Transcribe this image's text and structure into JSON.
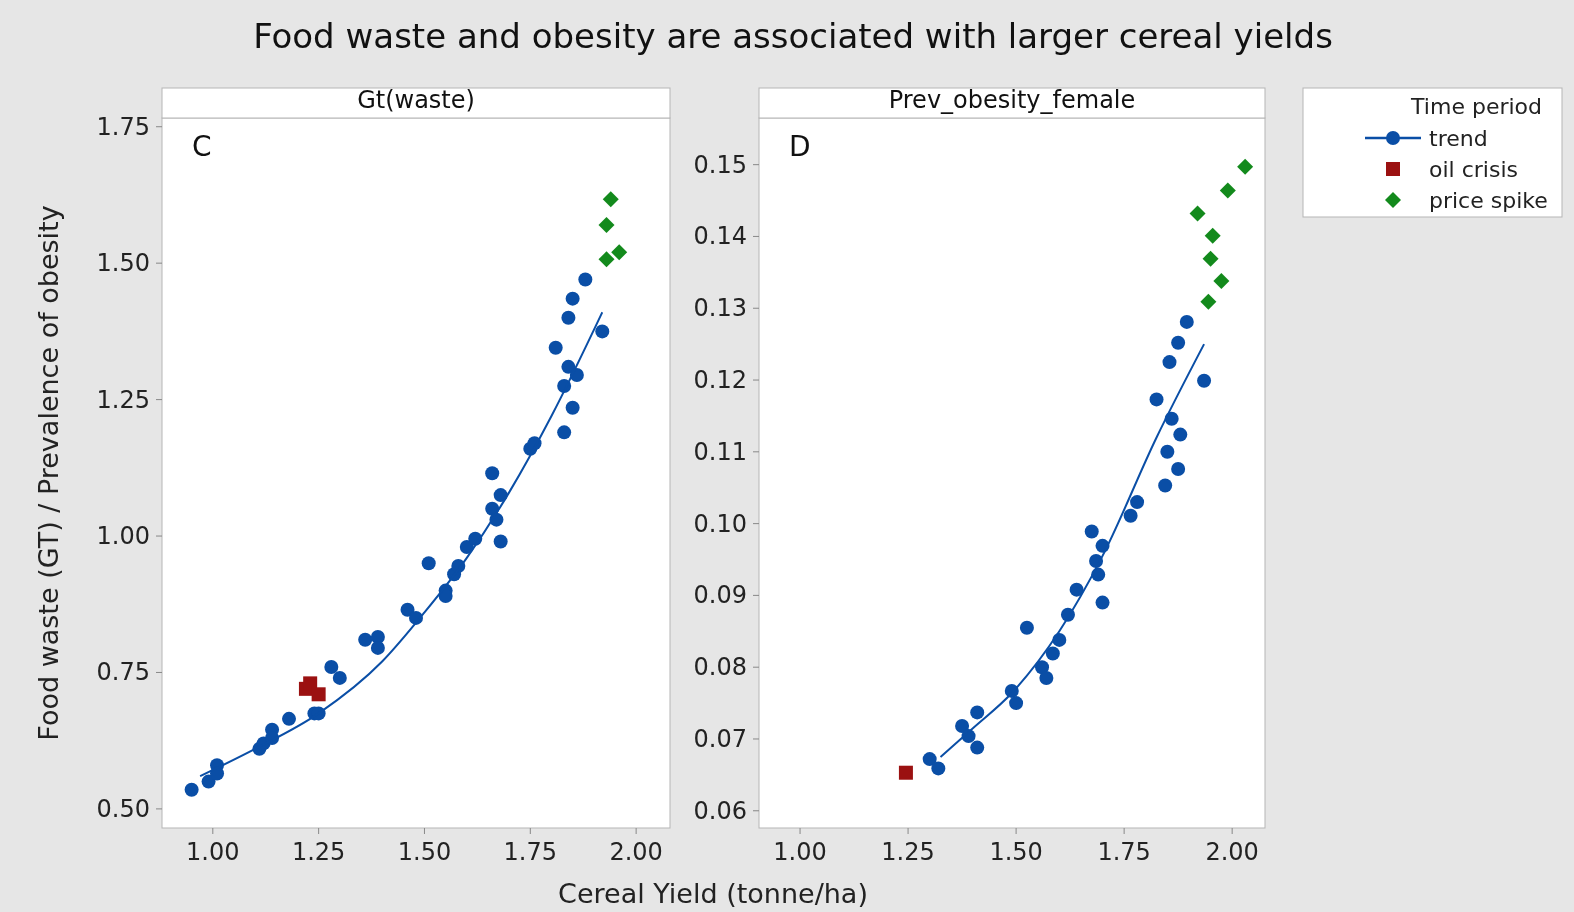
{
  "chart_data": [
    {
      "type": "scatter",
      "title": "Food waste and obesity are associated with larger cereal yields",
      "subtitle": "Gt(waste)",
      "xlabel": "Cereal Yield (tonne/ha)",
      "ylabel": "Food waste (GT) / Prevalence of obesity",
      "annotations": [
        "C"
      ],
      "xlim": [
        0.88,
        2.08
      ],
      "ylim": [
        0.465,
        1.766
      ],
      "xticks": [
        {
          "value": 1,
          "label": "1.00"
        },
        {
          "value": 1.25,
          "label": "1.25"
        },
        {
          "value": 1.5,
          "label": "1.50"
        },
        {
          "value": 1.75,
          "label": "1.75"
        },
        {
          "value": 2,
          "label": "2.00"
        }
      ],
      "yticks": [
        {
          "value": 0.5,
          "label": "0.50"
        },
        {
          "value": 0.75,
          "label": "0.75"
        },
        {
          "value": 1,
          "label": "1.00"
        },
        {
          "value": 1.25,
          "label": "1.25"
        },
        {
          "value": 1.5,
          "label": "1.50"
        },
        {
          "value": 1.75,
          "label": "1.75"
        }
      ],
      "grid": false,
      "legend_title": "Time period",
      "legend": "right",
      "series": [
        {
          "name": "trend",
          "type": "scatter",
          "marker": "circle",
          "color": "#0a4ea6",
          "x": [
            0.95,
            0.99,
            1.01,
            1.01,
            1.11,
            1.12,
            1.14,
            1.14,
            1.18,
            1.24,
            1.25,
            1.28,
            1.3,
            1.36,
            1.39,
            1.39,
            1.46,
            1.48,
            1.51,
            1.55,
            1.55,
            1.57,
            1.58,
            1.6,
            1.62,
            1.66,
            1.66,
            1.68,
            1.67,
            1.68,
            1.75,
            1.76,
            1.81,
            1.83,
            1.84,
            1.85,
            1.88,
            1.84,
            1.86,
            1.83,
            1.85,
            1.92
          ],
          "values": [
            0.535,
            0.55,
            0.58,
            0.565,
            0.61,
            0.62,
            0.645,
            0.63,
            0.665,
            0.675,
            0.675,
            0.76,
            0.74,
            0.81,
            0.815,
            0.795,
            0.865,
            0.85,
            0.95,
            0.9,
            0.89,
            0.93,
            0.945,
            0.98,
            0.995,
            1.115,
            1.05,
            1.075,
            1.03,
            0.99,
            1.16,
            1.17,
            1.345,
            1.19,
            1.4,
            1.435,
            1.47,
            1.31,
            1.295,
            1.275,
            1.235,
            1.375
          ]
        },
        {
          "type": "line",
          "marker": "none",
          "color": "#0a4ea6",
          "x": [
            0.97,
            1.1,
            1.25,
            1.4,
            1.5,
            1.6,
            1.7,
            1.8,
            1.92
          ],
          "values": [
            0.56,
            0.61,
            0.675,
            0.77,
            0.86,
            0.96,
            1.08,
            1.22,
            1.41
          ]
        },
        {
          "name": "oil crisis",
          "type": "scatter",
          "marker": "square",
          "color": "#9b1111",
          "x": [
            1.22,
            1.23,
            1.25
          ],
          "values": [
            0.72,
            0.73,
            0.71
          ]
        },
        {
          "name": "price spike",
          "type": "scatter",
          "marker": "diamond",
          "color": "#138a1c",
          "x": [
            1.94,
            1.93,
            1.93,
            1.96
          ],
          "values": [
            1.617,
            1.57,
            1.507,
            1.52
          ]
        }
      ]
    },
    {
      "type": "scatter",
      "subtitle": "Prev_obesity_female",
      "annotations": [
        "D"
      ],
      "xlim": [
        0.905,
        2.076
      ],
      "ylim": [
        0.0576,
        0.1565
      ],
      "xticks": [
        {
          "value": 1,
          "label": "1.00"
        },
        {
          "value": 1.25,
          "label": "1.25"
        },
        {
          "value": 1.5,
          "label": "1.50"
        },
        {
          "value": 1.75,
          "label": "1.75"
        },
        {
          "value": 2,
          "label": "2.00"
        }
      ],
      "yticks": [
        {
          "value": 0.06,
          "label": "0.06"
        },
        {
          "value": 0.07,
          "label": "0.07"
        },
        {
          "value": 0.08,
          "label": "0.08"
        },
        {
          "value": 0.09,
          "label": "0.09"
        },
        {
          "value": 0.1,
          "label": "0.10"
        },
        {
          "value": 0.11,
          "label": "0.11"
        },
        {
          "value": 0.12,
          "label": "0.12"
        },
        {
          "value": 0.13,
          "label": "0.13"
        },
        {
          "value": 0.14,
          "label": "0.14"
        },
        {
          "value": 0.15,
          "label": "0.15"
        }
      ],
      "grid": false,
      "series": [
        {
          "type": "scatter",
          "marker": "circle",
          "color": "#0a4ea6",
          "x": [
            1.3,
            1.32,
            1.375,
            1.39,
            1.41,
            1.41,
            1.49,
            1.5,
            1.525,
            1.56,
            1.57,
            1.585,
            1.6,
            1.62,
            1.64,
            1.675,
            1.7,
            1.685,
            1.69,
            1.7,
            1.765,
            1.78,
            1.825,
            1.845,
            1.85,
            1.86,
            1.88,
            1.875,
            1.855,
            1.875,
            1.895,
            1.935
          ],
          "values": [
            0.0672,
            0.0659,
            0.0718,
            0.0704,
            0.0737,
            0.0688,
            0.0767,
            0.075,
            0.0855,
            0.08,
            0.0785,
            0.0819,
            0.0838,
            0.0873,
            0.0908,
            0.0989,
            0.0969,
            0.0948,
            0.0929,
            0.089,
            0.1011,
            0.103,
            0.1173,
            0.1053,
            0.11,
            0.1146,
            0.1124,
            0.1076,
            0.1225,
            0.1252,
            0.1281,
            0.1199
          ]
        },
        {
          "type": "line",
          "marker": "none",
          "color": "#0a4ea6",
          "x": [
            1.325,
            1.4,
            1.49,
            1.6,
            1.7,
            1.825,
            1.935
          ],
          "values": [
            0.0675,
            0.0715,
            0.0764,
            0.085,
            0.0955,
            0.112,
            0.125
          ]
        },
        {
          "type": "scatter",
          "marker": "square",
          "color": "#9b1111",
          "x": [
            1.245
          ],
          "values": [
            0.0653
          ]
        },
        {
          "type": "scatter",
          "marker": "diamond",
          "color": "#138a1c",
          "x": [
            1.92,
            1.955,
            1.95,
            1.975,
            1.945,
            1.99,
            2.03
          ],
          "values": [
            0.1432,
            0.1401,
            0.1369,
            0.1338,
            0.1309,
            0.1464,
            0.1497
          ]
        }
      ]
    }
  ]
}
